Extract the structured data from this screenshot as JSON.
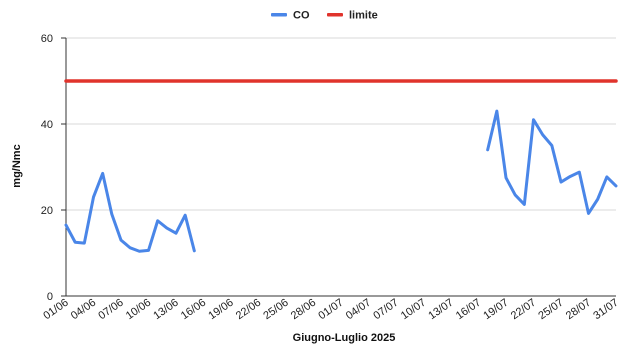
{
  "chart_data": {
    "type": "line",
    "title": "",
    "xlabel": "Giugno-Luglio 2025",
    "ylabel": "mg/Nmc",
    "ylim": [
      0,
      60
    ],
    "yticks": [
      0,
      20,
      40,
      60
    ],
    "grid": true,
    "legend_position": "top-center",
    "x": [
      "01/06",
      "02/06",
      "03/06",
      "04/06",
      "05/06",
      "06/06",
      "07/06",
      "08/06",
      "09/06",
      "10/06",
      "11/06",
      "12/06",
      "13/06",
      "14/06",
      "15/06",
      "16/06",
      "17/06",
      "18/06",
      "19/06",
      "20/06",
      "21/06",
      "22/06",
      "23/06",
      "24/06",
      "25/06",
      "26/06",
      "27/06",
      "28/06",
      "29/06",
      "30/06",
      "01/07",
      "02/07",
      "03/07",
      "04/07",
      "05/07",
      "06/07",
      "07/07",
      "08/07",
      "09/07",
      "10/07",
      "11/07",
      "12/07",
      "13/07",
      "14/07",
      "15/07",
      "16/07",
      "17/07",
      "18/07",
      "19/07",
      "20/07",
      "21/07",
      "22/07",
      "23/07",
      "24/07",
      "25/07",
      "26/07",
      "27/07",
      "28/07",
      "29/07",
      "30/07",
      "31/07"
    ],
    "x_tick_labels": [
      "01/06",
      "04/06",
      "07/06",
      "10/06",
      "13/06",
      "16/06",
      "19/06",
      "22/06",
      "25/06",
      "28/06",
      "01/07",
      "04/07",
      "07/07",
      "10/07",
      "13/07",
      "16/07",
      "19/07",
      "22/07",
      "25/07",
      "28/07",
      "31/07"
    ],
    "series": [
      {
        "name": "CO",
        "color": "#4a86e8",
        "values": [
          16.5,
          12.5,
          12.3,
          23,
          28.5,
          19,
          13,
          11.2,
          10.4,
          10.6,
          17.5,
          15.8,
          14.6,
          18.8,
          10.5,
          null,
          null,
          null,
          null,
          null,
          null,
          null,
          null,
          null,
          null,
          null,
          null,
          null,
          null,
          null,
          null,
          null,
          null,
          null,
          null,
          null,
          null,
          null,
          null,
          null,
          null,
          null,
          null,
          null,
          null,
          null,
          34,
          43,
          27.5,
          23.5,
          21.3,
          41,
          37.5,
          35,
          26.5,
          27.8,
          28.8,
          19.2,
          22.5,
          27.7,
          25.6
        ]
      },
      {
        "name": "limite",
        "color": "#e0332c",
        "values": [
          50,
          50,
          50,
          50,
          50,
          50,
          50,
          50,
          50,
          50,
          50,
          50,
          50,
          50,
          50,
          50,
          50,
          50,
          50,
          50,
          50,
          50,
          50,
          50,
          50,
          50,
          50,
          50,
          50,
          50,
          50,
          50,
          50,
          50,
          50,
          50,
          50,
          50,
          50,
          50,
          50,
          50,
          50,
          50,
          50,
          50,
          50,
          50,
          50,
          50,
          50,
          50,
          50,
          50,
          50,
          50,
          50,
          50,
          50,
          50,
          50
        ]
      }
    ]
  }
}
